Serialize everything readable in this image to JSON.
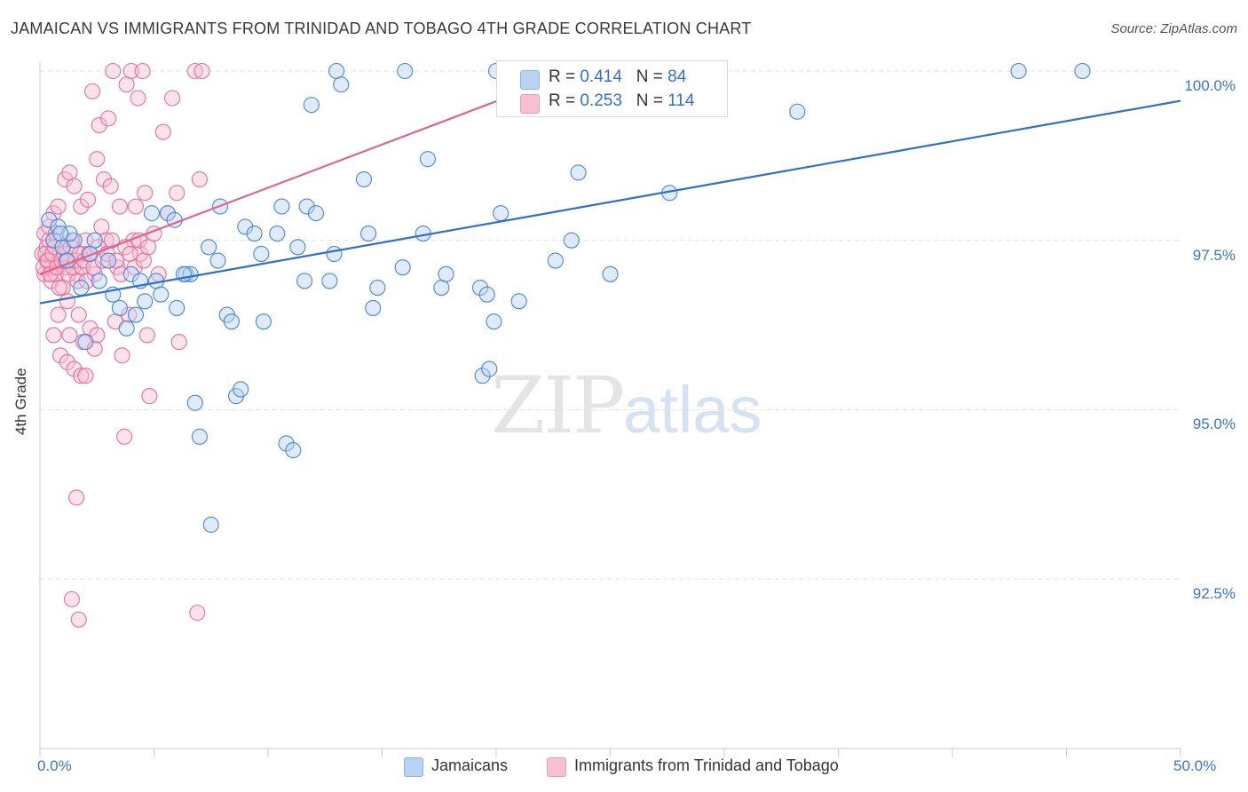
{
  "title": "JAMAICAN VS IMMIGRANTS FROM TRINIDAD AND TOBAGO 4TH GRADE CORRELATION CHART",
  "source": "Source: ZipAtlas.com",
  "watermark": {
    "zip": "ZIP",
    "atlas": "atlas"
  },
  "colors": {
    "blue": "#4a86d8",
    "blue_fill": "#b8d3f5",
    "pink": "#e8709a",
    "pink_fill": "#f7bfd2",
    "grid": "#e2e2e2",
    "axis_text": "#3a73cf"
  },
  "legend": {
    "rows": [
      {
        "r_label": "R = ",
        "r_value": "0.414",
        "n_label": "N = ",
        "n_value": "84"
      },
      {
        "r_label": "R = ",
        "r_value": "0.253",
        "n_label": "N = ",
        "n_value": "114"
      }
    ]
  },
  "bottom_legend": [
    "Jamaicans",
    "Immigrants from Trinidad and Tobago"
  ],
  "chart_data": {
    "type": "scatter",
    "title": "JAMAICAN VS IMMIGRANTS FROM TRINIDAD AND TOBAGO 4TH GRADE CORRELATION CHART",
    "xlabel": "",
    "ylabel": "4th Grade",
    "xlim": [
      0,
      50
    ],
    "ylim": [
      90.0,
      100.25
    ],
    "x_tick_labels": [
      "0.0%",
      "50.0%"
    ],
    "y_ticks": [
      92.5,
      95.0,
      97.5,
      100.0
    ],
    "y_tick_labels": [
      "92.5%",
      "95.0%",
      "97.5%",
      "100.0%"
    ],
    "grid": true,
    "legend_position": "top-center",
    "series": [
      {
        "name": "Jamaicans",
        "R": 0.414,
        "N": 84,
        "trend": {
          "x": [
            0,
            50
          ],
          "y": [
            96.57,
            99.56
          ]
        },
        "points": [
          [
            0.4,
            97.8
          ],
          [
            0.6,
            97.5
          ],
          [
            0.8,
            97.7
          ],
          [
            1.0,
            97.4
          ],
          [
            1.2,
            97.2
          ],
          [
            1.5,
            97.5
          ],
          [
            1.8,
            96.8
          ],
          [
            2.0,
            96.0
          ],
          [
            2.4,
            97.5
          ],
          [
            2.6,
            96.9
          ],
          [
            3.0,
            97.2
          ],
          [
            3.2,
            96.7
          ],
          [
            3.5,
            96.5
          ],
          [
            3.8,
            96.2
          ],
          [
            4.0,
            97.0
          ],
          [
            4.2,
            96.4
          ],
          [
            4.6,
            96.6
          ],
          [
            4.9,
            97.9
          ],
          [
            5.1,
            96.9
          ],
          [
            5.3,
            96.7
          ],
          [
            5.6,
            97.9
          ],
          [
            5.9,
            97.8
          ],
          [
            6.0,
            96.5
          ],
          [
            6.4,
            97.0
          ],
          [
            6.6,
            97.0
          ],
          [
            6.8,
            95.1
          ],
          [
            7.0,
            94.6
          ],
          [
            7.4,
            97.4
          ],
          [
            7.5,
            93.3
          ],
          [
            7.8,
            97.2
          ],
          [
            7.9,
            98.0
          ],
          [
            8.2,
            96.4
          ],
          [
            8.4,
            96.3
          ],
          [
            8.6,
            95.2
          ],
          [
            8.8,
            95.3
          ],
          [
            9.0,
            97.7
          ],
          [
            9.4,
            97.6
          ],
          [
            9.7,
            97.3
          ],
          [
            9.8,
            96.3
          ],
          [
            10.4,
            97.6
          ],
          [
            10.6,
            98.0
          ],
          [
            10.8,
            94.5
          ],
          [
            11.1,
            94.4
          ],
          [
            11.3,
            97.4
          ],
          [
            11.6,
            96.9
          ],
          [
            11.7,
            98.0
          ],
          [
            11.9,
            99.5
          ],
          [
            12.1,
            97.9
          ],
          [
            12.7,
            96.9
          ],
          [
            12.9,
            97.3
          ],
          [
            13.0,
            100.0
          ],
          [
            13.2,
            99.8
          ],
          [
            14.2,
            98.4
          ],
          [
            14.4,
            97.6
          ],
          [
            14.6,
            96.5
          ],
          [
            14.8,
            96.8
          ],
          [
            15.9,
            97.1
          ],
          [
            16.0,
            100.0
          ],
          [
            16.8,
            97.6
          ],
          [
            17.0,
            98.7
          ],
          [
            17.6,
            96.8
          ],
          [
            17.8,
            97.0
          ],
          [
            19.3,
            96.8
          ],
          [
            19.4,
            95.5
          ],
          [
            19.6,
            96.7
          ],
          [
            19.7,
            95.6
          ],
          [
            19.9,
            96.3
          ],
          [
            20.0,
            100.0
          ],
          [
            20.2,
            97.9
          ],
          [
            21.0,
            96.6
          ],
          [
            22.6,
            97.2
          ],
          [
            23.3,
            97.5
          ],
          [
            23.6,
            98.5
          ],
          [
            24.1,
            100.0
          ],
          [
            25.0,
            97.0
          ],
          [
            27.6,
            98.2
          ],
          [
            33.2,
            99.4
          ],
          [
            42.9,
            100.0
          ],
          [
            45.7,
            100.0
          ],
          [
            1.3,
            97.6
          ],
          [
            2.2,
            97.3
          ],
          [
            0.9,
            97.6
          ],
          [
            4.4,
            96.9
          ],
          [
            6.3,
            97.0
          ]
        ]
      },
      {
        "name": "Immigrants from Trinidad and Tobago",
        "R": 0.253,
        "N": 114,
        "trend": {
          "x": [
            0,
            23.5
          ],
          "y": [
            97.0,
            100.0
          ]
        },
        "points": [
          [
            0.1,
            97.3
          ],
          [
            0.2,
            97.6
          ],
          [
            0.2,
            97.0
          ],
          [
            0.3,
            97.4
          ],
          [
            0.3,
            97.2
          ],
          [
            0.4,
            97.5
          ],
          [
            0.4,
            97.7
          ],
          [
            0.5,
            96.9
          ],
          [
            0.5,
            97.1
          ],
          [
            0.6,
            96.1
          ],
          [
            0.6,
            97.9
          ],
          [
            0.7,
            97.6
          ],
          [
            0.7,
            97.0
          ],
          [
            0.8,
            98.0
          ],
          [
            0.8,
            96.4
          ],
          [
            0.9,
            97.3
          ],
          [
            0.9,
            95.8
          ],
          [
            1.0,
            97.4
          ],
          [
            1.0,
            96.8
          ],
          [
            1.1,
            98.4
          ],
          [
            1.1,
            97.1
          ],
          [
            1.2,
            96.6
          ],
          [
            1.2,
            95.7
          ],
          [
            1.3,
            98.5
          ],
          [
            1.3,
            96.1
          ],
          [
            1.4,
            97.5
          ],
          [
            1.4,
            92.2
          ],
          [
            1.5,
            98.3
          ],
          [
            1.5,
            95.6
          ],
          [
            1.6,
            97.0
          ],
          [
            1.6,
            93.7
          ],
          [
            1.7,
            96.4
          ],
          [
            1.7,
            91.9
          ],
          [
            1.8,
            98.0
          ],
          [
            1.8,
            95.5
          ],
          [
            1.9,
            97.3
          ],
          [
            1.9,
            96.0
          ],
          [
            2.0,
            97.5
          ],
          [
            2.0,
            95.5
          ],
          [
            2.1,
            98.1
          ],
          [
            2.2,
            96.2
          ],
          [
            2.3,
            99.7
          ],
          [
            2.4,
            97.0
          ],
          [
            2.4,
            95.9
          ],
          [
            2.5,
            98.7
          ],
          [
            2.5,
            96.1
          ],
          [
            2.6,
            99.2
          ],
          [
            2.7,
            97.7
          ],
          [
            2.8,
            98.4
          ],
          [
            2.9,
            97.5
          ],
          [
            3.0,
            99.3
          ],
          [
            3.1,
            98.3
          ],
          [
            3.2,
            100.0
          ],
          [
            3.3,
            96.3
          ],
          [
            3.4,
            97.1
          ],
          [
            3.5,
            98.0
          ],
          [
            3.6,
            95.8
          ],
          [
            3.7,
            94.6
          ],
          [
            3.8,
            99.8
          ],
          [
            3.9,
            96.4
          ],
          [
            4.0,
            100.0
          ],
          [
            4.1,
            97.5
          ],
          [
            4.2,
            98.0
          ],
          [
            4.3,
            99.6
          ],
          [
            4.4,
            97.3
          ],
          [
            4.5,
            100.0
          ],
          [
            4.6,
            98.2
          ],
          [
            4.7,
            96.1
          ],
          [
            4.8,
            95.2
          ],
          [
            5.0,
            97.6
          ],
          [
            5.2,
            97.0
          ],
          [
            5.4,
            99.1
          ],
          [
            5.6,
            97.9
          ],
          [
            5.8,
            99.6
          ],
          [
            6.0,
            98.2
          ],
          [
            6.1,
            96.0
          ],
          [
            6.8,
            100.0
          ],
          [
            6.9,
            92.0
          ],
          [
            7.0,
            98.4
          ],
          [
            7.1,
            100.0
          ],
          [
            0.15,
            97.1
          ],
          [
            0.25,
            97.3
          ],
          [
            0.35,
            97.2
          ],
          [
            0.45,
            97.0
          ],
          [
            0.55,
            97.3
          ],
          [
            0.65,
            97.4
          ],
          [
            0.75,
            97.1
          ],
          [
            0.85,
            96.8
          ],
          [
            0.95,
            97.2
          ],
          [
            1.05,
            97.3
          ],
          [
            1.15,
            97.2
          ],
          [
            1.25,
            97.0
          ],
          [
            1.35,
            97.4
          ],
          [
            1.45,
            97.1
          ],
          [
            1.55,
            97.2
          ],
          [
            1.65,
            96.9
          ],
          [
            1.75,
            97.3
          ],
          [
            1.85,
            97.1
          ],
          [
            1.95,
            97.2
          ],
          [
            2.05,
            96.9
          ],
          [
            2.15,
            97.3
          ],
          [
            2.35,
            97.1
          ],
          [
            2.55,
            97.4
          ],
          [
            2.75,
            97.2
          ],
          [
            2.95,
            97.3
          ],
          [
            3.15,
            97.5
          ],
          [
            3.35,
            97.2
          ],
          [
            3.55,
            97.0
          ],
          [
            3.75,
            97.4
          ],
          [
            3.95,
            97.3
          ],
          [
            4.15,
            97.1
          ],
          [
            4.35,
            97.5
          ],
          [
            4.55,
            97.2
          ],
          [
            4.75,
            97.4
          ]
        ]
      }
    ]
  }
}
